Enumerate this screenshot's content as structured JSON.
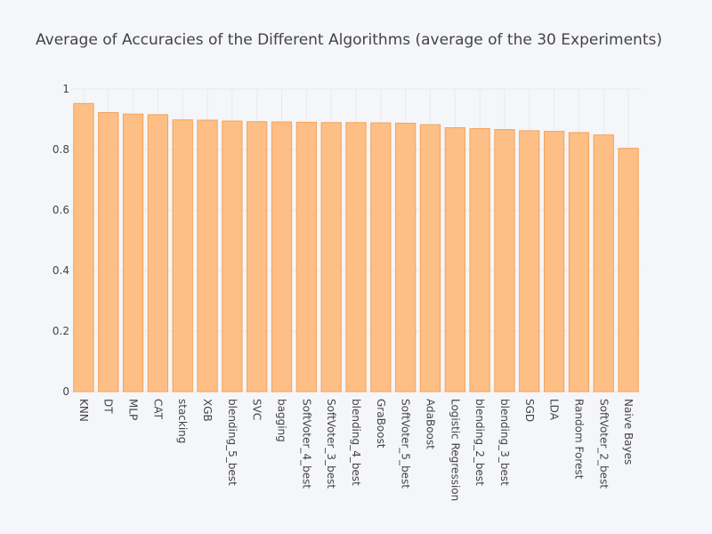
{
  "chart_data": {
    "type": "bar",
    "title": "Average of Accuracies of the Different Algorithms (average of the 30 Experiments)",
    "xlabel": "",
    "ylabel": "",
    "ylim": [
      0,
      1
    ],
    "yticks": [
      0,
      0.2,
      0.4,
      0.6,
      0.8,
      1
    ],
    "ytick_labels": [
      "0",
      "0.2",
      "0.4",
      "0.6",
      "0.8",
      "1"
    ],
    "grid": true,
    "legend": "none",
    "bar_color": "#fdbf85",
    "bar_edge_color": "#f5a15a",
    "categories": [
      "KNN",
      "DT",
      "MLP",
      "CAT",
      "stacking",
      "XGB",
      "blending_5_best",
      "SVC",
      "bagging",
      "SoftVoter_4_best",
      "SoftVoter_3_best",
      "blending_4_best",
      "GraBoost",
      "SoftVoter_5_best",
      "AdaBoost",
      "Logistic Regression",
      "blending_2_best",
      "blending_3_best",
      "SGD",
      "LDA",
      "Random Forest",
      "SoftVoter_2_best",
      "Naive Bayes"
    ],
    "values": [
      0.952,
      0.922,
      0.917,
      0.915,
      0.898,
      0.897,
      0.894,
      0.892,
      0.891,
      0.89,
      0.889,
      0.889,
      0.888,
      0.887,
      0.882,
      0.872,
      0.869,
      0.866,
      0.862,
      0.86,
      0.856,
      0.848,
      0.804
    ]
  }
}
